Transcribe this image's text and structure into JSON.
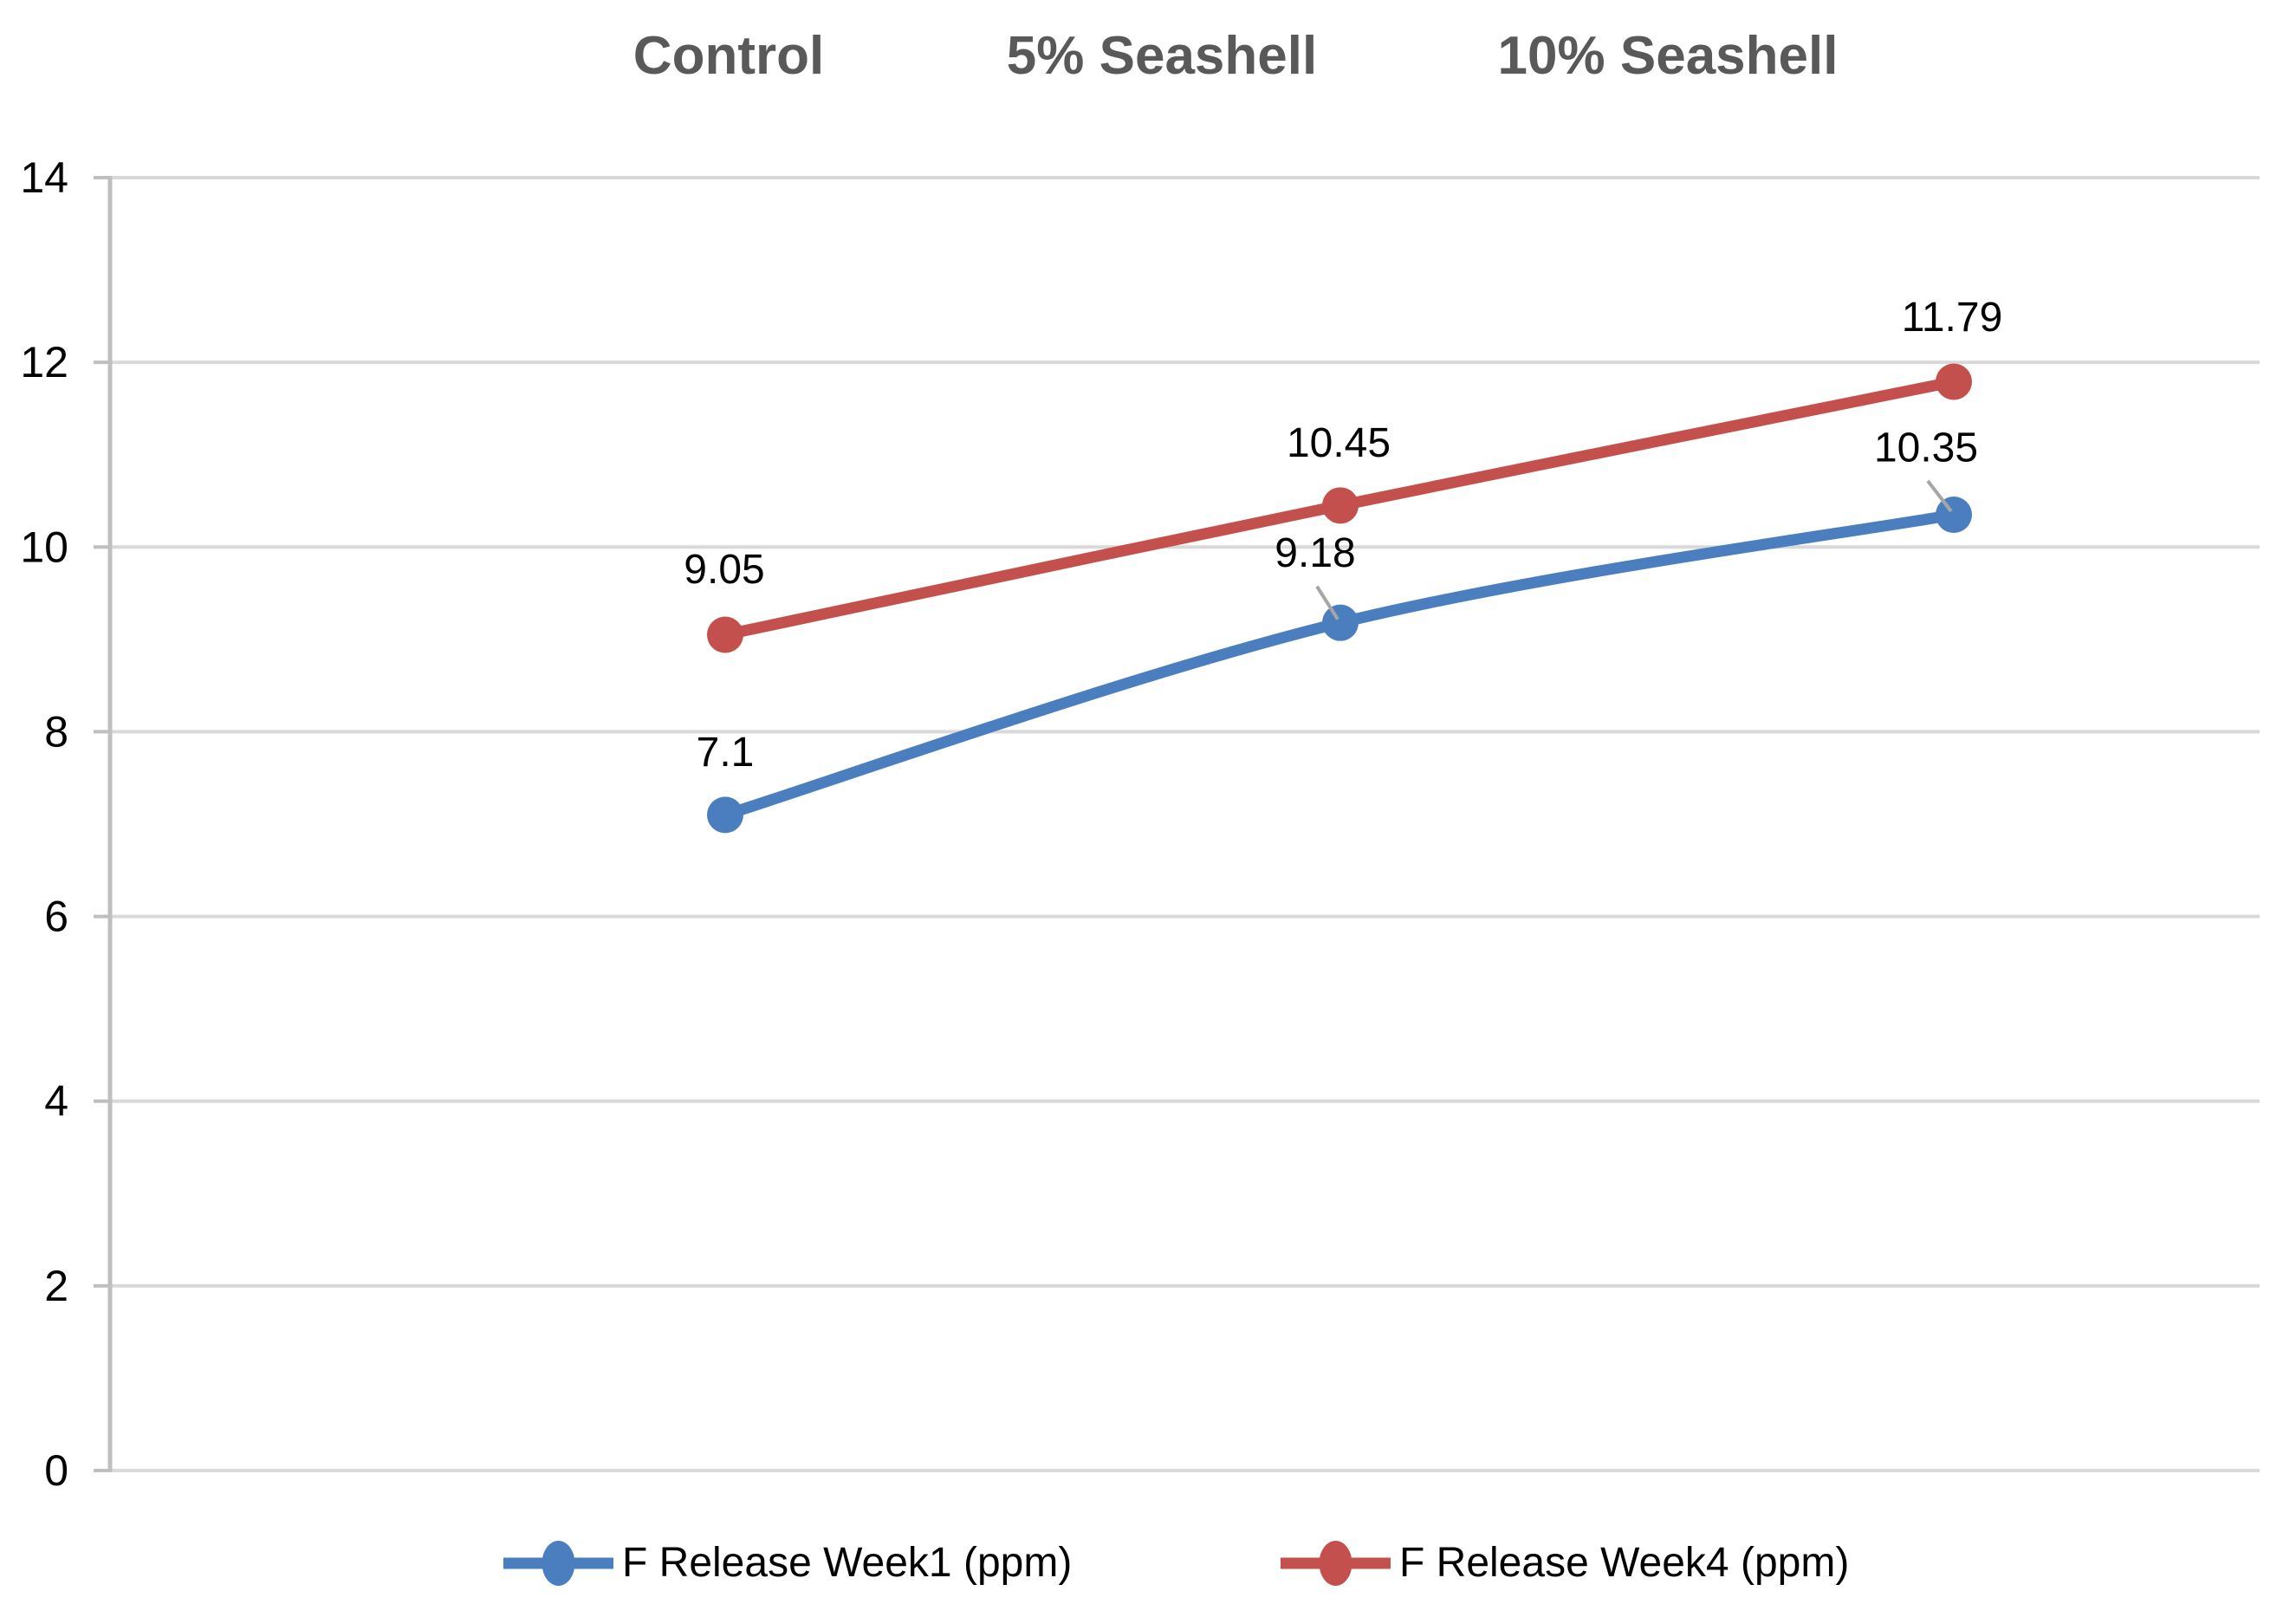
{
  "chart_data": {
    "type": "line",
    "categories": [
      "Control",
      "5% Seashell",
      "10% Seashell"
    ],
    "series": [
      {
        "name": "F Release Week1 (ppm)",
        "color": "#4A7EBE",
        "values": [
          7.1,
          9.18,
          10.35
        ],
        "point_labels": [
          "7.1",
          "9.18",
          "10.35"
        ]
      },
      {
        "name": "F Release Week4 (ppm)",
        "color": "#C4504D",
        "values": [
          9.05,
          10.45,
          11.79
        ],
        "point_labels": [
          "9.05",
          "10.45",
          "11.79"
        ]
      }
    ],
    "title": "",
    "xlabel": "",
    "ylabel": "",
    "ylim": [
      0,
      14
    ],
    "ytick_step": 2,
    "ytick_labels": [
      "0",
      "2",
      "4",
      "6",
      "8",
      "10",
      "12",
      "14"
    ],
    "grid": true,
    "smooth_lines": true,
    "legend_position": "bottom"
  },
  "colors": {
    "category_label": "#595959",
    "gridline": "#D9D9D9",
    "axis": "#BFBFBF",
    "tick": "#BFBFBF",
    "leader_line": "#A6A6A6",
    "data_label": "#000000",
    "background": "#FFFFFF"
  }
}
